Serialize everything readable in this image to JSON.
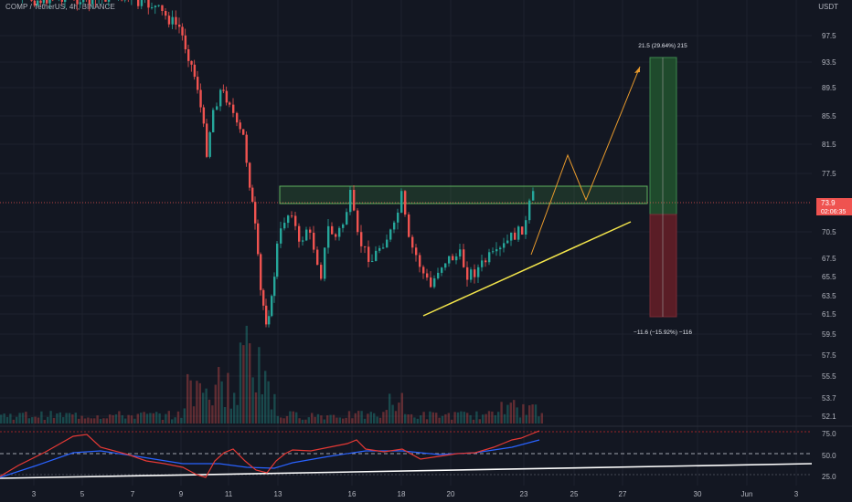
{
  "header": {
    "symbol_title": "COMP / TetherUS, 4h, BINANCE",
    "currency": "USDT"
  },
  "colors": {
    "background": "#131722",
    "candle_up": "#26a69a",
    "candle_down": "#ef5350",
    "support_line": "#ffeb3b",
    "projection": "#f7a21b",
    "resistance_zone": "#4caf50",
    "profit_zone": "#1f5a2e",
    "loss_zone": "#6b1f2a",
    "rsi_line": "#e53935",
    "rsi_ma": "#2962ff",
    "trend_line": "#ffffff"
  },
  "price_axis": {
    "ticks": [
      "97.5",
      "93.5",
      "89.5",
      "85.5",
      "81.5",
      "77.5",
      "70.5",
      "67.5",
      "65.5",
      "63.5",
      "61.5",
      "59.5",
      "57.5",
      "55.5",
      "53.7",
      "52.1"
    ],
    "current_price": "73.9",
    "countdown": "02:06:35"
  },
  "indicator_axis": {
    "ticks": [
      "75.0",
      "50.0",
      "25.0"
    ]
  },
  "time_axis": {
    "ticks": [
      "3",
      "5",
      "7",
      "9",
      "11",
      "13",
      "16",
      "18",
      "20",
      "23",
      "25",
      "27",
      "30",
      "Jun",
      "3"
    ]
  },
  "position_tool": {
    "target_label": "21.5 (29.64%) 215",
    "stop_label": "−11.6 (−15.92%) −116"
  },
  "chart_data": {
    "type": "candlestick",
    "symbol": "COMP / TetherUS",
    "interval": "4h",
    "exchange": "BINANCE",
    "last_price": 73.9,
    "resistance_zone": [
      73.9,
      75.9
    ],
    "position": {
      "target": 94.0,
      "stop": 61.0,
      "target_label": "21.5 (29.64%) 215",
      "stop_label": "−11.6 (−15.92%) −116"
    },
    "approx_close_path": [
      {
        "x": "3",
        "y": 104
      },
      {
        "x": "9",
        "y": 98
      },
      {
        "x": "11",
        "y": 82
      },
      {
        "x": "13",
        "y": 62
      },
      {
        "x": "13",
        "y": 72
      },
      {
        "x": "16",
        "y": 73
      },
      {
        "x": "18",
        "y": 70.5
      },
      {
        "x": "20",
        "y": 66
      },
      {
        "x": "23",
        "y": 70
      },
      {
        "x": "23",
        "y": 74
      }
    ],
    "rsi_levels": [
      75,
      50,
      25
    ]
  }
}
